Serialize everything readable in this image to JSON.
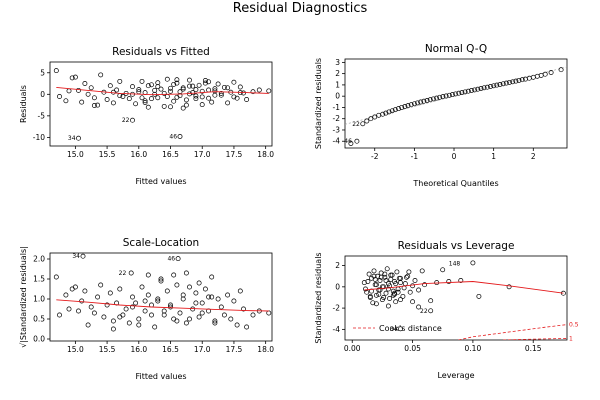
{
  "figure": {
    "title": "Residual Diagnostics"
  },
  "chart_data": [
    {
      "id": "rvf",
      "type": "scatter",
      "title": "Residuals vs Fitted",
      "xlabel": "Fitted values",
      "ylabel": "Residuals",
      "xlim": [
        14.6,
        18.1
      ],
      "ylim": [
        -12.0,
        7.5
      ],
      "xticks": [
        15.0,
        15.5,
        16.0,
        16.5,
        17.0,
        17.5,
        18.0
      ],
      "yticks": [
        -10,
        -5,
        0,
        5
      ],
      "grid": false,
      "smooth": {
        "x": [
          14.7,
          15.2,
          15.7,
          16.2,
          16.7,
          17.2,
          17.7,
          18.05
        ],
        "y": [
          1.6,
          0.9,
          0.2,
          -0.1,
          0.1,
          0.6,
          0.4,
          0.2
        ]
      },
      "labels": [
        {
          "text": "34",
          "x": 15.05,
          "y": -10.2
        },
        {
          "text": "22",
          "x": 15.9,
          "y": -6.0
        },
        {
          "text": "46",
          "x": 16.65,
          "y": -9.8
        }
      ],
      "x": [
        14.7,
        14.75,
        14.85,
        14.9,
        14.95,
        15.0,
        15.05,
        15.1,
        15.15,
        15.2,
        15.25,
        15.3,
        15.35,
        15.4,
        15.45,
        15.5,
        15.55,
        15.6,
        15.65,
        15.7,
        15.75,
        15.8,
        15.85,
        15.9,
        15.95,
        16.0,
        16.05,
        16.1,
        16.15,
        16.2,
        16.25,
        16.3,
        16.35,
        16.4,
        16.45,
        16.5,
        16.55,
        16.6,
        16.65,
        16.7,
        16.75,
        16.8,
        16.85,
        16.9,
        16.95,
        17.0,
        17.05,
        17.1,
        17.15,
        17.2,
        17.25,
        17.3,
        17.35,
        17.4,
        17.45,
        17.5,
        17.55,
        17.6,
        17.65,
        17.7,
        17.8,
        17.9,
        18.05,
        15.6,
        15.7,
        15.9,
        16.0,
        16.05,
        16.1,
        16.15,
        16.2,
        16.25,
        16.3,
        16.4,
        16.45,
        16.5,
        16.55,
        16.6,
        16.65,
        16.7,
        16.75,
        16.8,
        16.85,
        16.9,
        17.0,
        17.05,
        17.1,
        17.2,
        17.3,
        17.4,
        17.5,
        17.6,
        16.1,
        16.3,
        16.5,
        16.6,
        16.7,
        16.8,
        17.0,
        17.1,
        17.2,
        16.9,
        15.3,
        15.05,
        15.9,
        16.65
      ],
      "y": [
        5.5,
        -0.5,
        -1.5,
        0.8,
        3.8,
        4.0,
        0.9,
        -1.8,
        2.5,
        0.0,
        1.5,
        -0.8,
        -2.5,
        4.5,
        0.5,
        -1.2,
        2.0,
        -2.0,
        1.0,
        3.0,
        -0.5,
        0.2,
        -1.0,
        1.8,
        -2.2,
        0.6,
        3.0,
        -1.5,
        -3.0,
        2.2,
        0.0,
        -0.8,
        1.2,
        -2.8,
        3.5,
        0.7,
        -1.6,
        2.6,
        -0.3,
        1.5,
        -2.5,
        3.3,
        0.4,
        -1.0,
        2.1,
        -0.6,
        3.2,
        1.0,
        -1.8,
        0.8,
        2.4,
        -0.2,
        1.6,
        -2.0,
        0.5,
        2.8,
        -0.9,
        1.7,
        0.3,
        -1.2,
        0.6,
        1.0,
        0.8,
        0.5,
        -0.3,
        0.0,
        1.1,
        -0.8,
        0.4,
        2.0,
        -1.0,
        0.9,
        1.8,
        0.2,
        -0.5,
        1.4,
        2.3,
        -0.7,
        0.6,
        1.2,
        -1.3,
        0.1,
        1.9,
        -0.4,
        0.7,
        2.6,
        -0.9,
        1.3,
        0.2,
        1.5,
        -0.6,
        0.4,
        -1.9,
        2.7,
        -2.9,
        3.4,
        -3.2,
        1.9,
        -2.4,
        2.9,
        -0.2,
        1.1,
        -2.6,
        -10.2,
        -6.0,
        -9.8
      ]
    },
    {
      "id": "qq",
      "type": "scatter",
      "title": "Normal Q-Q",
      "xlabel": "Theoretical Quantiles",
      "ylabel": "Standardized residuals",
      "xlim": [
        -2.75,
        2.85
      ],
      "ylim": [
        -4.6,
        3.3
      ],
      "xticks": [
        -2,
        -1,
        0,
        1,
        2
      ],
      "yticks": [
        -4,
        -3,
        -2,
        -1,
        0,
        1,
        2,
        3
      ],
      "grid": false,
      "refline": {
        "x": [
          -2.75,
          2.85
        ],
        "y": [
          -2.5,
          2.6
        ]
      },
      "labels": [
        {
          "text": "22",
          "x": -2.3,
          "y": -2.45
        },
        {
          "text": "46",
          "x": -2.5,
          "y": -4.0
        }
      ],
      "x": [
        -2.6,
        -2.45,
        -2.3,
        -2.2,
        -2.1,
        -2.0,
        -1.9,
        -1.8,
        -1.72,
        -1.64,
        -1.56,
        -1.48,
        -1.4,
        -1.32,
        -1.24,
        -1.16,
        -1.08,
        -1.0,
        -0.92,
        -0.84,
        -0.76,
        -0.68,
        -0.6,
        -0.52,
        -0.44,
        -0.36,
        -0.28,
        -0.2,
        -0.12,
        -0.04,
        0.04,
        0.12,
        0.2,
        0.28,
        0.36,
        0.44,
        0.52,
        0.6,
        0.68,
        0.76,
        0.84,
        0.92,
        1.0,
        1.08,
        1.16,
        1.24,
        1.32,
        1.4,
        1.48,
        1.56,
        1.64,
        1.72,
        1.8,
        1.9,
        2.0,
        2.1,
        2.2,
        2.3,
        2.45,
        2.7
      ],
      "y": [
        -4.2,
        -4.0,
        -2.45,
        -2.2,
        -2.0,
        -1.85,
        -1.7,
        -1.6,
        -1.5,
        -1.4,
        -1.3,
        -1.2,
        -1.1,
        -1.0,
        -0.92,
        -0.84,
        -0.76,
        -0.68,
        -0.6,
        -0.52,
        -0.45,
        -0.38,
        -0.31,
        -0.24,
        -0.17,
        -0.1,
        -0.04,
        0.02,
        0.08,
        0.14,
        0.2,
        0.26,
        0.32,
        0.38,
        0.44,
        0.5,
        0.56,
        0.62,
        0.68,
        0.74,
        0.8,
        0.86,
        0.92,
        0.98,
        1.04,
        1.1,
        1.16,
        1.22,
        1.28,
        1.34,
        1.4,
        1.46,
        1.52,
        1.6,
        1.68,
        1.76,
        1.84,
        1.95,
        2.1,
        2.35
      ]
    },
    {
      "id": "scale",
      "type": "scatter",
      "title": "Scale-Location",
      "xlabel": "Fitted values",
      "ylabel": "√|Standardized residuals|",
      "xlim": [
        14.6,
        18.1
      ],
      "ylim": [
        -0.05,
        2.15
      ],
      "xticks": [
        15.0,
        15.5,
        16.0,
        16.5,
        17.0,
        17.5,
        18.0
      ],
      "yticks": [
        0.0,
        0.5,
        1.0,
        1.5,
        2.0
      ],
      "grid": false,
      "smooth": {
        "x": [
          14.7,
          15.2,
          15.7,
          16.2,
          16.7,
          17.2,
          17.7,
          18.05
        ],
        "y": [
          0.98,
          0.92,
          0.85,
          0.8,
          0.77,
          0.74,
          0.71,
          0.7
        ]
      },
      "labels": [
        {
          "text": "34",
          "x": 15.12,
          "y": 2.07
        },
        {
          "text": "22",
          "x": 15.85,
          "y": 1.65
        },
        {
          "text": "46",
          "x": 16.62,
          "y": 2.01
        }
      ],
      "x": [
        14.7,
        14.75,
        14.85,
        14.9,
        14.95,
        15.0,
        15.05,
        15.1,
        15.15,
        15.2,
        15.25,
        15.3,
        15.35,
        15.4,
        15.45,
        15.5,
        15.55,
        15.6,
        15.65,
        15.7,
        15.75,
        15.8,
        15.85,
        15.9,
        15.95,
        16.0,
        16.05,
        16.1,
        16.15,
        16.2,
        16.25,
        16.3,
        16.35,
        16.4,
        16.45,
        16.5,
        16.55,
        16.6,
        16.65,
        16.7,
        16.75,
        16.8,
        16.85,
        16.9,
        16.95,
        17.0,
        17.05,
        17.1,
        17.15,
        17.2,
        17.25,
        17.3,
        17.35,
        17.4,
        17.45,
        17.5,
        17.55,
        17.6,
        17.65,
        17.7,
        17.8,
        17.9,
        18.05,
        15.6,
        15.7,
        15.9,
        16.0,
        16.1,
        16.2,
        16.3,
        16.4,
        16.5,
        16.6,
        16.7,
        16.8,
        16.9,
        17.0,
        17.1,
        17.2,
        16.15,
        16.35,
        16.55,
        16.75,
        16.95,
        17.15,
        15.12,
        15.88,
        16.62
      ],
      "y": [
        1.55,
        0.6,
        1.1,
        0.75,
        1.25,
        1.3,
        0.7,
        0.95,
        1.2,
        0.35,
        0.8,
        0.65,
        1.05,
        1.35,
        0.55,
        0.85,
        1.15,
        0.45,
        0.9,
        1.25,
        0.6,
        0.75,
        0.4,
        1.05,
        0.9,
        0.5,
        1.3,
        0.7,
        1.1,
        0.85,
        0.3,
        0.95,
        1.45,
        0.6,
        1.2,
        0.8,
        0.5,
        1.35,
        0.65,
        1.0,
        0.4,
        1.3,
        0.75,
        1.15,
        0.55,
        0.9,
        1.25,
        0.7,
        1.05,
        0.45,
        1.0,
        0.8,
        0.6,
        1.1,
        0.5,
        0.95,
        0.35,
        1.2,
        0.75,
        0.3,
        0.6,
        0.7,
        0.65,
        0.25,
        0.55,
        0.8,
        0.35,
        0.95,
        0.6,
        1.0,
        0.7,
        0.85,
        0.45,
        1.1,
        0.5,
        0.9,
        0.65,
        1.05,
        0.4,
        1.6,
        1.5,
        1.6,
        1.65,
        1.4,
        1.55,
        2.07,
        1.65,
        2.01
      ]
    },
    {
      "id": "lev",
      "type": "scatter",
      "title": "Residuals vs Leverage",
      "xlabel": "Leverage",
      "ylabel": "Standardized residuals",
      "xlim": [
        -0.006,
        0.178
      ],
      "ylim": [
        -5.0,
        2.9
      ],
      "xticks": [
        0.0,
        0.05,
        0.1,
        0.15
      ],
      "yticks": [
        -4,
        -2,
        0,
        2
      ],
      "grid": false,
      "smooth": {
        "x": [
          0.01,
          0.03,
          0.06,
          0.1,
          0.13,
          0.175
        ],
        "y": [
          -0.3,
          -0.1,
          0.3,
          0.5,
          0.1,
          -0.6
        ]
      },
      "cooks": [
        {
          "label": "0.5",
          "x": [
            0.088,
            0.1,
            0.12,
            0.14,
            0.16,
            0.178
          ],
          "y": [
            -5.0,
            -4.7,
            -4.4,
            -4.1,
            -3.8,
            -3.55
          ]
        },
        {
          "label": "1",
          "x": [
            0.125,
            0.14,
            0.16,
            0.178
          ],
          "y": [
            -5.0,
            -4.95,
            -4.9,
            -4.85
          ]
        }
      ],
      "legend": {
        "text": "Cook's distance",
        "position": "bottom-left"
      },
      "labels": [
        {
          "text": "148",
          "x": 0.092,
          "y": 2.2
        },
        {
          "text": "22",
          "x": 0.065,
          "y": -2.25
        },
        {
          "text": "34",
          "x": 0.04,
          "y": -3.95
        }
      ],
      "x": [
        0.01,
        0.012,
        0.014,
        0.015,
        0.016,
        0.017,
        0.018,
        0.019,
        0.02,
        0.021,
        0.022,
        0.023,
        0.024,
        0.025,
        0.026,
        0.027,
        0.028,
        0.029,
        0.03,
        0.031,
        0.032,
        0.033,
        0.034,
        0.035,
        0.036,
        0.037,
        0.038,
        0.04,
        0.042,
        0.044,
        0.046,
        0.048,
        0.05,
        0.052,
        0.055,
        0.058,
        0.06,
        0.065,
        0.07,
        0.075,
        0.08,
        0.09,
        0.1,
        0.105,
        0.13,
        0.175,
        0.011,
        0.013,
        0.016,
        0.018,
        0.02,
        0.022,
        0.024,
        0.026,
        0.028,
        0.03,
        0.032,
        0.034,
        0.036,
        0.038,
        0.04,
        0.015,
        0.019,
        0.023,
        0.027,
        0.031,
        0.035,
        0.039,
        0.043,
        0.047,
        0.02,
        0.025,
        0.03,
        0.035,
        0.04,
        0.045,
        0.05,
        0.055,
        0.065,
        0.04
      ],
      "y": [
        0.4,
        -0.5,
        1.2,
        -1.0,
        0.8,
        -1.5,
        1.5,
        0.2,
        -0.8,
        1.0,
        -0.3,
        0.6,
        1.3,
        -1.2,
        0.0,
        0.9,
        -0.6,
        1.7,
        0.3,
        -1.1,
        0.7,
        1.1,
        -0.4,
        0.5,
        -1.4,
        1.4,
        -0.2,
        0.8,
        -0.9,
        0.3,
        1.0,
        -0.5,
        0.1,
        0.6,
        -0.3,
        1.5,
        0.2,
        -1.3,
        0.4,
        1.6,
        0.5,
        0.6,
        2.25,
        -0.9,
        0.0,
        -0.6,
        -0.2,
        0.5,
        -0.4,
        1.0,
        0.2,
        -0.7,
        0.9,
        -1.0,
        0.6,
        -0.2,
        1.1,
        -0.8,
        0.3,
        -0.5,
        0.4,
        -0.9,
        0.7,
        -0.3,
        1.2,
        0.1,
        -0.6,
        0.8,
        -0.1,
        1.4,
        -1.6,
        0.0,
        -1.8,
        -0.7,
        -1.2,
        0.9,
        -1.4,
        -1.9,
        -2.25,
        -3.95
      ]
    }
  ]
}
